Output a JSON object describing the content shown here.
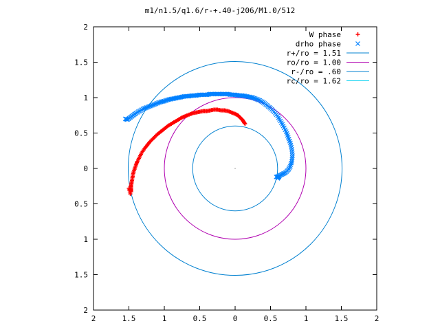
{
  "chart_data": {
    "type": "scatter",
    "title": "m1/n1.5/q1.6/r-+.40-j206/M1.0/512",
    "xlabel": "",
    "ylabel": "",
    "xlim": [
      2,
      -2
    ],
    "ylim": [
      -2,
      2
    ],
    "x_ticks": [
      "2",
      "1.5",
      "1",
      "0.5",
      "0",
      "0.5",
      "1",
      "1.5",
      "2"
    ],
    "y_ticks": [
      "2",
      "1.5",
      "1",
      "0.5",
      "0",
      "0.5",
      "1",
      "1.5",
      "2"
    ],
    "grid": false,
    "legend_position": "top-right",
    "series": [
      {
        "name": "W phase",
        "kind": "points",
        "marker": "plus",
        "color": "#ff0000",
        "points": [
          [
            -0.14,
            0.63
          ],
          [
            -0.12,
            0.66
          ],
          [
            -0.1,
            0.69
          ],
          [
            -0.07,
            0.72
          ],
          [
            -0.04,
            0.75
          ],
          [
            0.0,
            0.77
          ],
          [
            0.05,
            0.79
          ],
          [
            0.1,
            0.81
          ],
          [
            0.15,
            0.82
          ],
          [
            0.2,
            0.82
          ],
          [
            0.25,
            0.83
          ],
          [
            0.3,
            0.83
          ],
          [
            0.35,
            0.82
          ],
          [
            0.4,
            0.81
          ],
          [
            0.45,
            0.81
          ],
          [
            0.5,
            0.8
          ],
          [
            0.55,
            0.79
          ],
          [
            0.6,
            0.78
          ],
          [
            0.65,
            0.76
          ],
          [
            0.7,
            0.74
          ],
          [
            0.75,
            0.72
          ],
          [
            0.8,
            0.69
          ],
          [
            0.85,
            0.66
          ],
          [
            0.9,
            0.63
          ],
          [
            0.95,
            0.6
          ],
          [
            1.0,
            0.56
          ],
          [
            1.05,
            0.52
          ],
          [
            1.1,
            0.48
          ],
          [
            1.15,
            0.43
          ],
          [
            1.2,
            0.38
          ],
          [
            1.24,
            0.33
          ],
          [
            1.28,
            0.28
          ],
          [
            1.32,
            0.22
          ],
          [
            1.35,
            0.16
          ],
          [
            1.38,
            0.1
          ],
          [
            1.4,
            0.05
          ],
          [
            1.42,
            -0.01
          ],
          [
            1.44,
            -0.07
          ],
          [
            1.45,
            -0.13
          ],
          [
            1.46,
            -0.19
          ],
          [
            1.47,
            -0.24
          ],
          [
            1.47,
            -0.29
          ],
          [
            1.47,
            -0.33
          ],
          [
            1.5,
            -0.28
          ],
          [
            1.48,
            -0.36
          ]
        ]
      },
      {
        "name": "drho phase",
        "kind": "points",
        "marker": "cross",
        "color": "#0080ff",
        "points": [
          [
            1.55,
            0.7
          ],
          [
            1.52,
            0.69
          ],
          [
            1.48,
            0.72
          ],
          [
            1.44,
            0.75
          ],
          [
            1.4,
            0.78
          ],
          [
            1.35,
            0.81
          ],
          [
            1.3,
            0.84
          ],
          [
            1.25,
            0.86
          ],
          [
            1.2,
            0.88
          ],
          [
            1.15,
            0.9
          ],
          [
            1.1,
            0.92
          ],
          [
            1.05,
            0.94
          ],
          [
            1.0,
            0.95
          ],
          [
            0.95,
            0.97
          ],
          [
            0.9,
            0.98
          ],
          [
            0.85,
            0.99
          ],
          [
            0.8,
            1.0
          ],
          [
            0.75,
            1.01
          ],
          [
            0.7,
            1.02
          ],
          [
            0.65,
            1.02
          ],
          [
            0.6,
            1.03
          ],
          [
            0.55,
            1.03
          ],
          [
            0.5,
            1.04
          ],
          [
            0.45,
            1.04
          ],
          [
            0.4,
            1.04
          ],
          [
            0.35,
            1.05
          ],
          [
            0.3,
            1.05
          ],
          [
            0.25,
            1.05
          ],
          [
            0.2,
            1.05
          ],
          [
            0.15,
            1.05
          ],
          [
            0.1,
            1.05
          ],
          [
            0.05,
            1.04
          ],
          [
            0.0,
            1.04
          ],
          [
            -0.05,
            1.03
          ],
          [
            -0.1,
            1.03
          ],
          [
            -0.15,
            1.02
          ],
          [
            -0.2,
            1.01
          ],
          [
            -0.25,
            1.0
          ],
          [
            -0.3,
            0.98
          ],
          [
            -0.35,
            0.96
          ],
          [
            -0.4,
            0.93
          ],
          [
            -0.45,
            0.89
          ],
          [
            -0.5,
            0.85
          ],
          [
            -0.55,
            0.8
          ],
          [
            -0.6,
            0.74
          ],
          [
            -0.64,
            0.67
          ],
          [
            -0.68,
            0.6
          ],
          [
            -0.72,
            0.52
          ],
          [
            -0.75,
            0.44
          ],
          [
            -0.78,
            0.36
          ],
          [
            -0.8,
            0.27
          ],
          [
            -0.81,
            0.18
          ],
          [
            -0.8,
            0.1
          ],
          [
            -0.78,
            0.03
          ],
          [
            -0.75,
            -0.02
          ],
          [
            -0.71,
            -0.06
          ],
          [
            -0.67,
            -0.08
          ],
          [
            -0.63,
            -0.1
          ],
          [
            -0.6,
            -0.14
          ],
          [
            -0.62,
            -0.11
          ],
          [
            -0.58,
            -0.12
          ]
        ]
      },
      {
        "name": "r+/ro = 1.51",
        "kind": "circle",
        "radius": 1.51,
        "color": "#0080d0"
      },
      {
        "name": "ro/ro = 1.00",
        "kind": "circle",
        "radius": 1.0,
        "color": "#b000b0"
      },
      {
        "name": "r-/ro = .60",
        "kind": "circle",
        "radius": 0.6,
        "color": "#0080d0"
      },
      {
        "name": "rc/ro = 1.62",
        "kind": "circle-partial",
        "radius": 1.62,
        "color": "#00d0f0"
      }
    ]
  }
}
